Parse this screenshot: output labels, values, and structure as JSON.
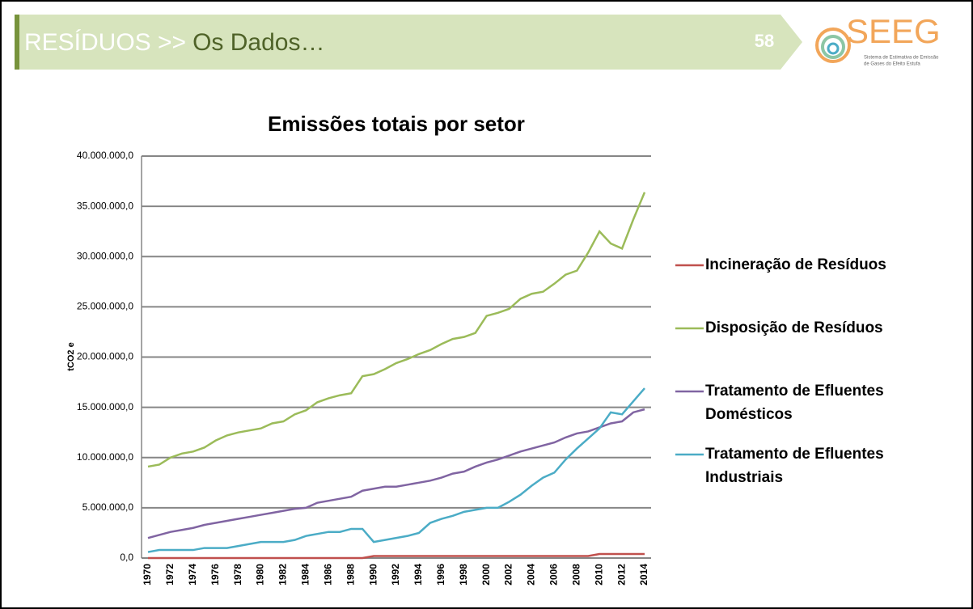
{
  "header": {
    "section": "RESÍDUOS >>",
    "subtitle": "Os Dados…",
    "page_number": "58"
  },
  "logo": {
    "name": "SEEG",
    "tagline_1": "Sistema de Estimativa de Emissão",
    "tagline_2": "de Gases do Efeito Estufa"
  },
  "chart_data": {
    "type": "line",
    "title": "Emissões totais por setor",
    "y_label": "tCO2 e",
    "categories": [
      1970,
      null,
      1972,
      null,
      1974,
      null,
      1976,
      null,
      1978,
      null,
      1980,
      null,
      1982,
      null,
      1984,
      null,
      1986,
      null,
      1988,
      null,
      1990,
      null,
      1992,
      null,
      1994,
      null,
      1996,
      null,
      1998,
      null,
      2000,
      null,
      2002,
      null,
      2004,
      null,
      2006,
      null,
      2008,
      null,
      2010,
      null,
      2012,
      null,
      2014
    ],
    "ylim": [
      0,
      40000000
    ],
    "yticks": [
      {
        "value": 0,
        "label": "0,0"
      },
      {
        "value": 5000000,
        "label": "5.000.000,0"
      },
      {
        "value": 10000000,
        "label": "10.000.000,0"
      },
      {
        "value": 15000000,
        "label": "15.000.000,0"
      },
      {
        "value": 20000000,
        "label": "20.000.000,0"
      },
      {
        "value": 25000000,
        "label": "25.000.000,0"
      },
      {
        "value": 30000000,
        "label": "30.000.000,0"
      },
      {
        "value": 35000000,
        "label": "35.000.000,0"
      },
      {
        "value": 40000000,
        "label": "40.000.000,0"
      }
    ],
    "grid": true,
    "legend": "right",
    "series": [
      {
        "name": "Incineração de Resíduos",
        "color": "#c0504d",
        "values": [
          0,
          0,
          0,
          0,
          0,
          0,
          0,
          0,
          0,
          0,
          0,
          0,
          0,
          0,
          0,
          0,
          0,
          0,
          0,
          0,
          200000,
          200000,
          200000,
          200000,
          200000,
          200000,
          200000,
          200000,
          200000,
          200000,
          200000,
          200000,
          200000,
          200000,
          200000,
          200000,
          200000,
          200000,
          200000,
          200000,
          400000,
          400000,
          400000,
          400000,
          400000
        ]
      },
      {
        "name": "Disposição  de Resíduos",
        "color": "#9bbb59",
        "values": [
          9100000,
          9300000,
          10000000,
          10400000,
          10600000,
          11000000,
          11700000,
          12200000,
          12500000,
          12700000,
          12900000,
          13400000,
          13600000,
          14300000,
          14700000,
          15500000,
          15900000,
          16200000,
          16400000,
          18100000,
          18300000,
          18800000,
          19400000,
          19800000,
          20300000,
          20700000,
          21300000,
          21800000,
          22000000,
          22400000,
          24100000,
          24400000,
          24800000,
          25800000,
          26300000,
          26500000,
          27300000,
          28200000,
          28600000,
          30400000,
          32500000,
          31300000,
          30800000,
          33700000,
          36400000
        ]
      },
      {
        "name": "Tratamento de Efluentes Domésticos",
        "color": "#8064a2",
        "values": [
          2000000,
          2300000,
          2600000,
          2800000,
          3000000,
          3300000,
          3500000,
          3700000,
          3900000,
          4100000,
          4300000,
          4500000,
          4700000,
          4900000,
          5000000,
          5500000,
          5700000,
          5900000,
          6100000,
          6700000,
          6900000,
          7100000,
          7100000,
          7300000,
          7500000,
          7700000,
          8000000,
          8400000,
          8600000,
          9100000,
          9500000,
          9800000,
          10200000,
          10600000,
          10900000,
          11200000,
          11500000,
          12000000,
          12400000,
          12600000,
          13000000,
          13400000,
          13600000,
          14500000,
          14800000
        ]
      },
      {
        "name": "Tratamento de Efluentes Industriais",
        "color": "#4bacc6",
        "values": [
          600000,
          800000,
          800000,
          800000,
          800000,
          1000000,
          1000000,
          1000000,
          1200000,
          1400000,
          1600000,
          1600000,
          1600000,
          1800000,
          2200000,
          2400000,
          2600000,
          2600000,
          2900000,
          2900000,
          1600000,
          1800000,
          2000000,
          2200000,
          2500000,
          3500000,
          3900000,
          4200000,
          4600000,
          4800000,
          5000000,
          5000000,
          5600000,
          6300000,
          7200000,
          8000000,
          8500000,
          9800000,
          10900000,
          11900000,
          12900000,
          14500000,
          14300000,
          15600000,
          16900000
        ]
      }
    ]
  }
}
